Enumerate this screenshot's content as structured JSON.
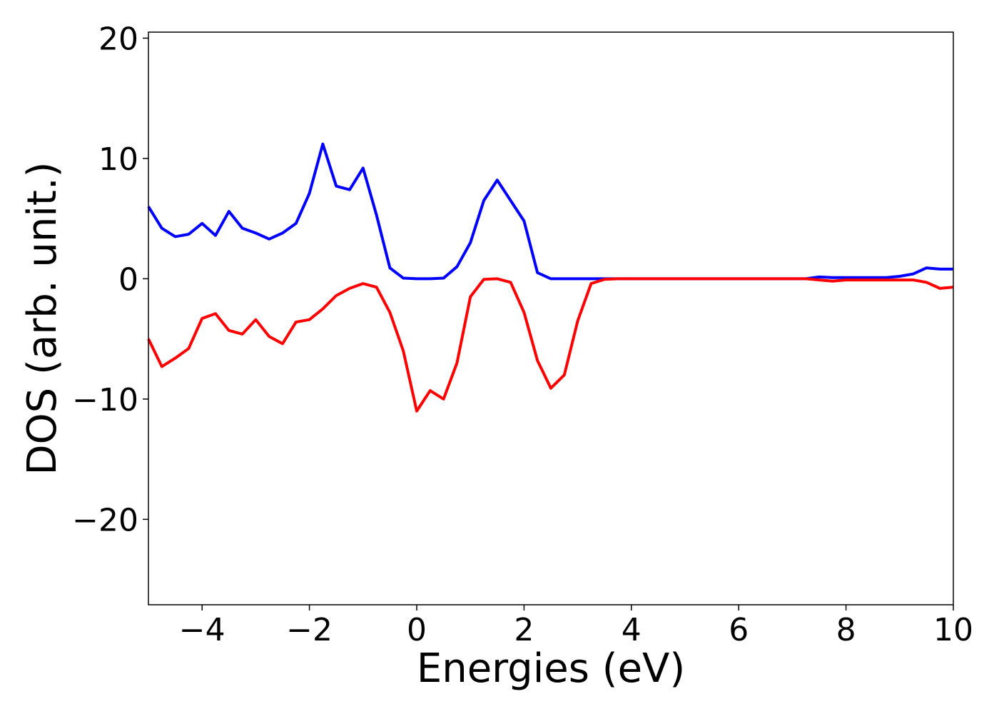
{
  "chart_data": {
    "type": "line",
    "xlabel": "Energies (eV)",
    "ylabel": "DOS (arb. unit.)",
    "x": [
      -5,
      -4.75,
      -4.5,
      -4.25,
      -4,
      -3.75,
      -3.5,
      -3.25,
      -3,
      -2.75,
      -2.5,
      -2.25,
      -2,
      -1.75,
      -1.5,
      -1.25,
      -1,
      -0.75,
      -0.5,
      -0.25,
      0,
      0.25,
      0.5,
      0.75,
      1,
      1.25,
      1.5,
      1.75,
      2,
      2.25,
      2.5,
      2.75,
      3,
      3.25,
      3.5,
      3.75,
      4,
      4.25,
      4.5,
      4.75,
      5,
      5.25,
      5.5,
      5.75,
      6,
      6.25,
      6.5,
      6.75,
      7,
      7.25,
      7.5,
      7.75,
      8,
      8.25,
      8.5,
      8.75,
      9,
      9.25,
      9.5,
      9.75,
      10
    ],
    "series": [
      {
        "color": "#0000ff",
        "values": [
          6.0,
          4.2,
          3.5,
          3.7,
          4.6,
          3.6,
          5.6,
          4.2,
          3.8,
          3.3,
          3.8,
          4.6,
          7.1,
          11.2,
          7.7,
          7.4,
          9.2,
          5.3,
          0.9,
          0.05,
          0,
          0,
          0.05,
          1.0,
          3.0,
          6.5,
          8.2,
          6.5,
          4.8,
          0.5,
          0,
          0,
          0,
          0,
          0,
          0,
          0,
          0,
          0,
          0,
          0,
          0,
          0,
          0,
          0,
          0,
          0,
          0,
          0,
          0,
          0.15,
          0.1,
          0.1,
          0.1,
          0.1,
          0.1,
          0.2,
          0.4,
          0.9,
          0.8,
          0.8
        ]
      },
      {
        "color": "#ff0000",
        "values": [
          -5.0,
          -7.3,
          -6.6,
          -5.8,
          -3.3,
          -2.9,
          -4.3,
          -4.6,
          -3.4,
          -4.8,
          -5.4,
          -3.6,
          -3.4,
          -2.5,
          -1.4,
          -0.8,
          -0.4,
          -0.7,
          -2.8,
          -6.0,
          -11.0,
          -9.3,
          -10.0,
          -7.0,
          -1.5,
          -0.05,
          0,
          -0.3,
          -2.8,
          -6.8,
          -9.1,
          -8.0,
          -3.5,
          -0.4,
          -0.05,
          0,
          0,
          0,
          0,
          0,
          0,
          0,
          0,
          0,
          0,
          0,
          0,
          0,
          0,
          0,
          -0.1,
          -0.2,
          -0.1,
          -0.1,
          -0.1,
          -0.1,
          -0.1,
          -0.1,
          -0.3,
          -0.8,
          -0.7
        ]
      }
    ],
    "xlim": [
      -5,
      10
    ],
    "xticks": [
      {
        "value": -4,
        "label": "−4"
      },
      {
        "value": -2,
        "label": "−2"
      },
      0,
      2,
      4,
      6,
      8,
      10
    ],
    "ylim": [
      -27.1,
      20.5
    ],
    "yticks": [
      {
        "value": -20,
        "label": "−20"
      },
      {
        "value": -10,
        "label": "−10"
      },
      0,
      10,
      20
    ],
    "grid": false
  }
}
